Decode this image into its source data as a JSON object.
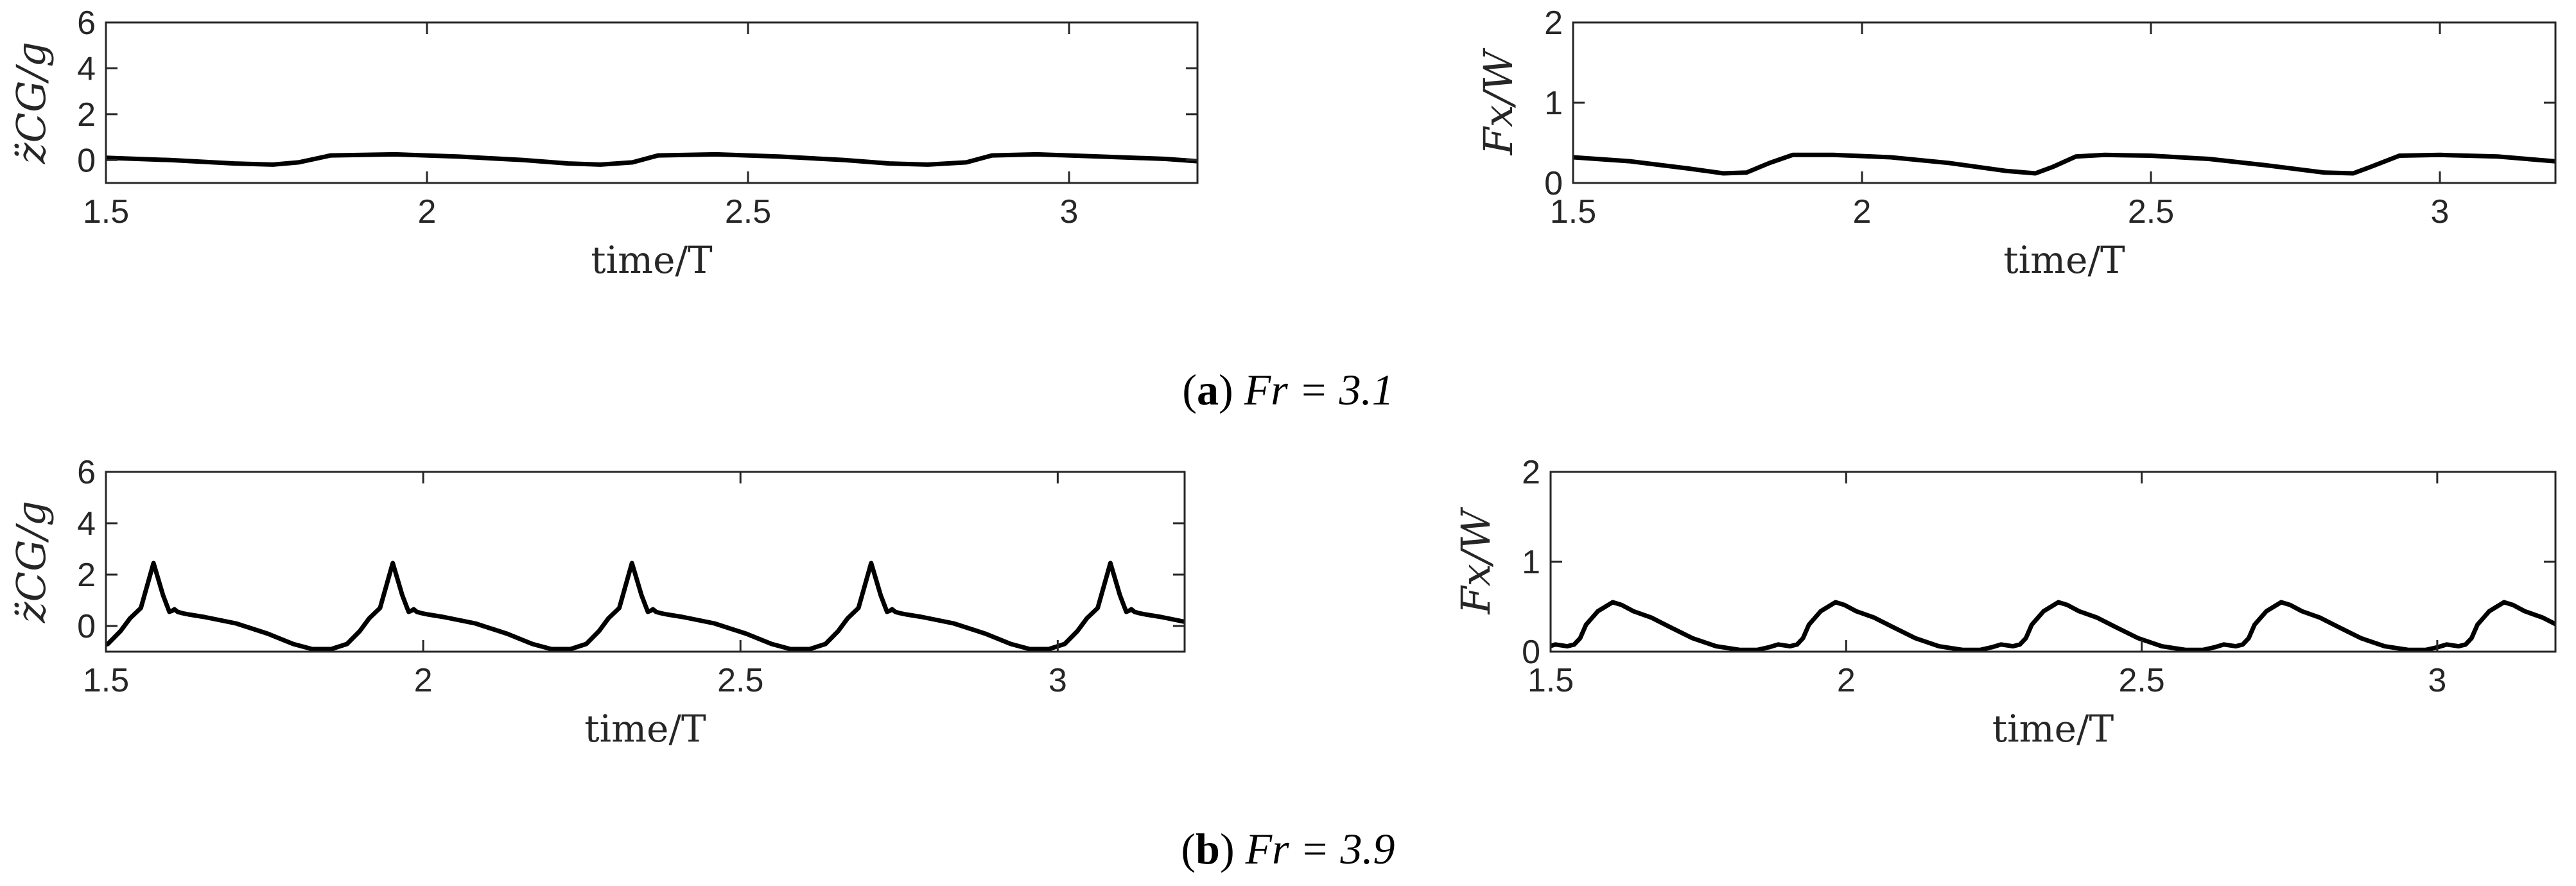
{
  "figure": {
    "caption_a": {
      "open": "(",
      "letter": "a",
      "close": ")",
      "text": "Fr = 3.1"
    },
    "caption_b": {
      "open": "(",
      "letter": "b",
      "close": ")",
      "text": "Fr = 3.9"
    }
  },
  "chart_data": [
    {
      "id": "a-acc",
      "type": "line",
      "xlabel": "time/T",
      "ylabel": "z̈CG/g",
      "xlim": [
        1.5,
        3.2
      ],
      "ylim": [
        -1,
        6
      ],
      "xticks": [
        1.5,
        2,
        2.5,
        3
      ],
      "xtick_labels": [
        "1.5",
        "2",
        "2.5",
        "3"
      ],
      "yticks": [
        0,
        2,
        4,
        6
      ],
      "ytick_labels": [
        "0",
        "2",
        "4",
        "6"
      ],
      "grid": false,
      "series": [
        {
          "x": [
            1.5,
            1.6,
            1.7,
            1.76,
            1.8,
            1.85,
            1.95,
            2.05,
            2.15,
            2.22,
            2.27,
            2.32,
            2.36,
            2.45,
            2.55,
            2.65,
            2.72,
            2.78,
            2.84,
            2.88,
            2.95,
            3.05,
            3.15,
            3.2
          ],
          "y": [
            0.1,
            0.0,
            -0.15,
            -0.2,
            -0.1,
            0.2,
            0.25,
            0.15,
            0.0,
            -0.15,
            -0.2,
            -0.1,
            0.2,
            0.25,
            0.15,
            0.0,
            -0.15,
            -0.2,
            -0.1,
            0.2,
            0.25,
            0.15,
            0.05,
            -0.05
          ]
        }
      ]
    },
    {
      "id": "a-force",
      "type": "line",
      "xlabel": "time/T",
      "ylabel": "Fx/W",
      "xlim": [
        1.5,
        3.2
      ],
      "ylim": [
        0,
        2
      ],
      "xticks": [
        1.5,
        2,
        2.5,
        3
      ],
      "xtick_labels": [
        "1.5",
        "2",
        "2.5",
        "3"
      ],
      "yticks": [
        0,
        1,
        2
      ],
      "ytick_labels": [
        "0",
        "1",
        "2"
      ],
      "grid": false,
      "series": [
        {
          "x": [
            1.5,
            1.6,
            1.7,
            1.76,
            1.8,
            1.84,
            1.88,
            1.95,
            2.05,
            2.15,
            2.25,
            2.3,
            2.33,
            2.37,
            2.42,
            2.5,
            2.6,
            2.7,
            2.8,
            2.85,
            2.88,
            2.93,
            3.0,
            3.1,
            3.2
          ],
          "y": [
            0.32,
            0.27,
            0.18,
            0.12,
            0.13,
            0.25,
            0.35,
            0.35,
            0.32,
            0.25,
            0.15,
            0.12,
            0.2,
            0.33,
            0.35,
            0.34,
            0.3,
            0.22,
            0.13,
            0.12,
            0.2,
            0.34,
            0.35,
            0.33,
            0.27
          ]
        }
      ]
    },
    {
      "id": "b-acc",
      "type": "line",
      "xlabel": "time/T",
      "ylabel": "z̈CG/g",
      "xlim": [
        1.5,
        3.2
      ],
      "ylim": [
        -1,
        6
      ],
      "xticks": [
        1.5,
        2,
        2.5,
        3
      ],
      "xtick_labels": [
        "1.5",
        "2",
        "2.5",
        "3"
      ],
      "yticks": [
        0,
        2,
        4,
        6
      ],
      "ytick_labels": [
        "0",
        "2",
        "4",
        "6"
      ],
      "grid": false,
      "period": 0.377,
      "cycle_starts": [
        1.178,
        1.555,
        1.932,
        2.309,
        2.686,
        3.063
      ],
      "cycle_shape": {
        "dt": [
          0.0,
          0.02,
          0.035,
          0.045,
          0.05,
          0.053,
          0.058,
          0.065,
          0.075,
          0.1,
          0.15,
          0.2,
          0.24,
          0.27,
          0.3,
          0.325,
          0.345,
          0.36,
          0.377
        ],
        "y": [
          0.7,
          2.45,
          1.2,
          0.55,
          0.6,
          0.65,
          0.55,
          0.5,
          0.45,
          0.35,
          0.1,
          -0.3,
          -0.7,
          -0.9,
          -0.9,
          -0.7,
          -0.2,
          0.3,
          0.7
        ]
      }
    },
    {
      "id": "b-force",
      "type": "line",
      "xlabel": "time/T",
      "ylabel": "Fx/W",
      "xlim": [
        1.5,
        3.2
      ],
      "ylim": [
        0,
        2
      ],
      "xticks": [
        1.5,
        2,
        2.5,
        3
      ],
      "xtick_labels": [
        "1.5",
        "2",
        "2.5",
        "3"
      ],
      "yticks": [
        0,
        1,
        2
      ],
      "ytick_labels": [
        "0",
        "1",
        "2"
      ],
      "grid": false,
      "period": 0.377,
      "cycle_starts": [
        1.163,
        1.54,
        1.917,
        2.294,
        2.671,
        3.048
      ],
      "cycle_shape": {
        "dt": [
          0.0,
          0.01,
          0.02,
          0.04,
          0.065,
          0.08,
          0.1,
          0.13,
          0.16,
          0.2,
          0.24,
          0.28,
          0.31,
          0.33,
          0.345,
          0.355,
          0.365,
          0.377
        ],
        "y": [
          0.08,
          0.15,
          0.3,
          0.45,
          0.55,
          0.52,
          0.45,
          0.38,
          0.28,
          0.15,
          0.06,
          0.02,
          0.02,
          0.05,
          0.08,
          0.07,
          0.06,
          0.08
        ]
      }
    }
  ]
}
